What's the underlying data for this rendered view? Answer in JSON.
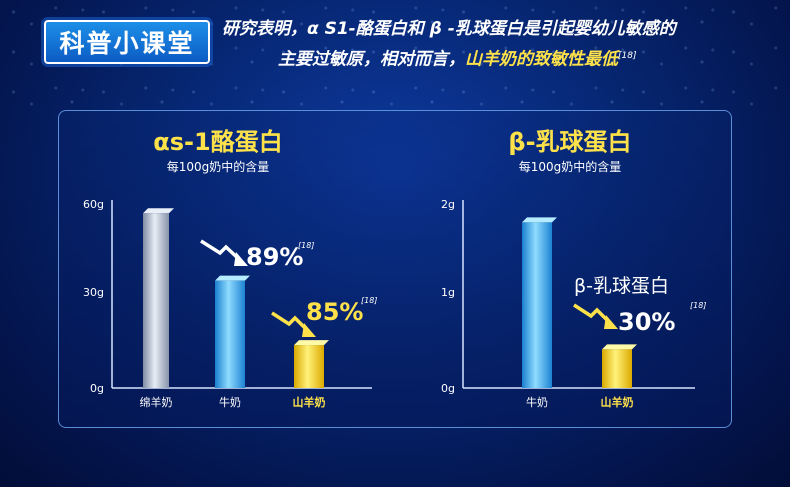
{
  "badge": "科普小课堂",
  "intro": {
    "line1": "研究表明，α S1-酪蛋白和 β -乳球蛋白是引起婴幼儿敏感的",
    "line2_prefix": "主要过敏原，相对而言，",
    "line2_highlight": "山羊奶的致敏性最低",
    "line2_ref": "[18]"
  },
  "colors": {
    "background": "#06256f",
    "highlight_yellow": "#ffe14a",
    "badge_blue": "#1578dc",
    "sheep_bar": "#b8c3d8",
    "cow_bar": "#3fb3ea",
    "goat_bar": "#ffe33a"
  },
  "chart_data": [
    {
      "type": "bar",
      "title": "αs-1酪蛋白",
      "subtitle": "每100g奶中的含量",
      "categories": [
        "绵羊奶",
        "牛奶",
        "山羊奶"
      ],
      "highlight_category": "山羊奶",
      "values": [
        57,
        35,
        14
      ],
      "unit": "g",
      "ylim": [
        0,
        60
      ],
      "yticks": [
        "0g",
        "30g",
        "60g"
      ],
      "annotations": [
        {
          "text": "89%",
          "ref": "[18]",
          "arrow": "down-right",
          "style": "white"
        },
        {
          "text": "85%",
          "ref": "[18]",
          "arrow": "down-right",
          "style": "yellow"
        }
      ]
    },
    {
      "type": "bar",
      "title": "β-乳球蛋白",
      "subtitle": "每100g奶中的含量",
      "categories": [
        "牛奶",
        "山羊奶"
      ],
      "highlight_category": "山羊奶",
      "values": [
        1.8,
        0.42
      ],
      "unit": "g",
      "ylim": [
        0,
        2
      ],
      "yticks": [
        "0g",
        "1g",
        "2g"
      ],
      "annotations": [
        {
          "label": "β-乳球蛋白",
          "text": "30%",
          "ref": "[18]",
          "arrow": "down-right",
          "style": "white"
        }
      ]
    }
  ]
}
